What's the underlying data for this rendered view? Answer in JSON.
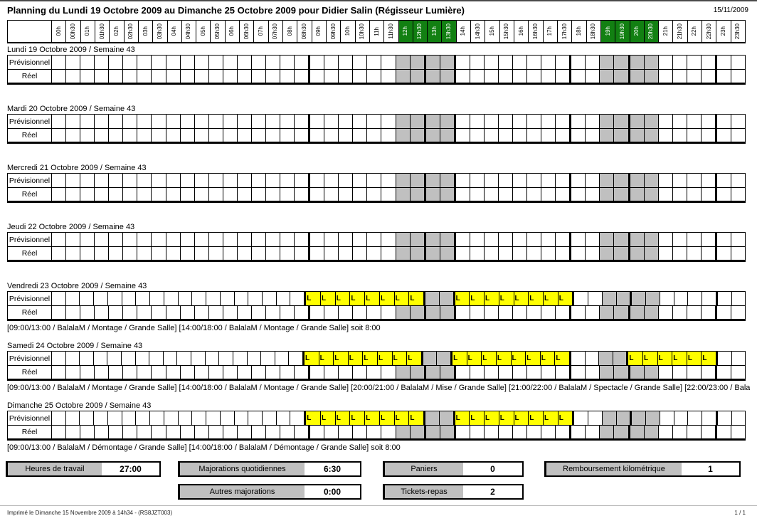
{
  "header": {
    "title": "Planning du Lundi 19 Octobre 2009 au Dimanche 25 Octobre 2009 pour Didier Salin (Régisseur Lumière)",
    "print_date": "15/11/2009"
  },
  "timeline": {
    "hours": [
      "00h",
      "00h30",
      "01h",
      "01h30",
      "02h",
      "02h30",
      "03h",
      "03h30",
      "04h",
      "04h30",
      "05h",
      "05h30",
      "06h",
      "06h30",
      "07h",
      "07h30",
      "08h",
      "08h30",
      "09h",
      "09h30",
      "10h",
      "10h30",
      "11h",
      "11h30",
      "12h",
      "12h30",
      "13h",
      "13h30",
      "14h",
      "14h30",
      "15h",
      "15h30",
      "16h",
      "16h30",
      "17h",
      "17h30",
      "18h",
      "18h30",
      "19h",
      "19h30",
      "20h",
      "20h30",
      "21h",
      "21h30",
      "22h",
      "22h30",
      "23h",
      "23h30"
    ],
    "highlighted_hours": [
      "12h",
      "12h30",
      "13h",
      "13h30",
      "19h",
      "19h30",
      "20h",
      "20h30"
    ]
  },
  "grid": {
    "row_labels": {
      "planned": "Prévisionnel",
      "actual": "Réel"
    },
    "work_marker": "L",
    "break_hours": [
      "12h",
      "12h30",
      "13h",
      "13h30",
      "19h",
      "19h30",
      "20h",
      "20h30"
    ],
    "period_boundaries": [
      "09h",
      "13h",
      "14h",
      "18h",
      "20h",
      "23h"
    ]
  },
  "days": [
    {
      "title": "Lundi 19 Octobre 2009 / Semaine 43",
      "planned_hours": [],
      "detail": ""
    },
    {
      "title": "Mardi 20 Octobre 2009 / Semaine 43",
      "planned_hours": [],
      "detail": ""
    },
    {
      "title": "Mercredi 21 Octobre 2009 / Semaine 43",
      "planned_hours": [],
      "detail": ""
    },
    {
      "title": "Jeudi 22 Octobre 2009 / Semaine 43",
      "planned_hours": [],
      "detail": ""
    },
    {
      "title": "Vendredi 23 Octobre 2009 / Semaine 43",
      "planned_hours": [
        "09h",
        "09h30",
        "10h",
        "10h30",
        "11h",
        "11h30",
        "12h",
        "12h30",
        "14h",
        "14h30",
        "15h",
        "15h30",
        "16h",
        "16h30",
        "17h",
        "17h30"
      ],
      "detail": "[09:00/13:00 / BalalaM / Montage / Grande Salle] [14:00/18:00 / BalalaM / Montage / Grande Salle]  soit 8:00"
    },
    {
      "title": "Samedi 24 Octobre 2009 / Semaine 43",
      "planned_hours": [
        "09h",
        "09h30",
        "10h",
        "10h30",
        "11h",
        "11h30",
        "12h",
        "12h30",
        "14h",
        "14h30",
        "15h",
        "15h30",
        "16h",
        "16h30",
        "17h",
        "17h30",
        "20h",
        "20h30",
        "21h",
        "21h30",
        "22h",
        "22h30"
      ],
      "detail": "[09:00/13:00 / BalalaM / Montage / Grande Salle] [14:00/18:00 / BalalaM / Montage / Grande Salle] [20:00/21:00 / BalalaM / Mise / Grande Salle] [21:00/22:00 / BalalaM / Spectacle / Grande Salle] [22:00/23:00 / Balala"
    },
    {
      "title": "Dimanche 25 Octobre 2009 / Semaine 43",
      "planned_hours": [
        "09h",
        "09h30",
        "10h",
        "10h30",
        "11h",
        "11h30",
        "12h",
        "12h30",
        "14h",
        "14h30",
        "15h",
        "15h30",
        "16h",
        "16h30",
        "17h",
        "17h30"
      ],
      "detail": "[09:00/13:00 / BalalaM / Démontage / Grande Salle] [14:00/18:00 / BalalaM / Démontage / Grande Salle]  soit 8:00"
    }
  ],
  "summary": [
    {
      "label": "Heures de travail",
      "value": "27:00"
    },
    {
      "label": "Majorations quotidiennes",
      "value": "6:30"
    },
    {
      "label": "Paniers",
      "value": "0"
    },
    {
      "label": "Remboursement kilométrique",
      "value": "1"
    },
    {
      "label": "Autres majorations",
      "value": "0:00"
    },
    {
      "label": "Tickets-repas",
      "value": "2"
    }
  ],
  "footer": {
    "printed_line": "Imprimé le Dimanche 15 Novembre 2009  à 14h34 - (RS8JZT003)",
    "page_indicator": "1 / 1"
  },
  "colors": {
    "highlight_green": "#128012",
    "break_gray": "#C0C0C0",
    "work_yellow": "#FFFF00"
  }
}
